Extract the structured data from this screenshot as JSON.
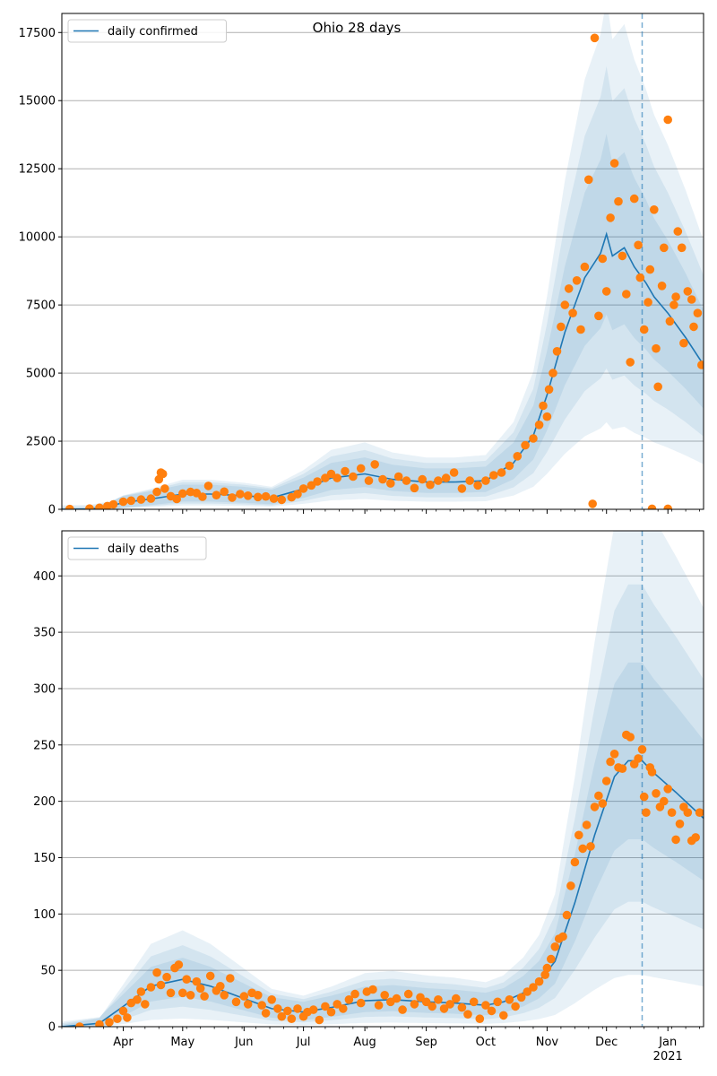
{
  "title": "Ohio 28 days",
  "colors": {
    "line": "#1f77b4",
    "points": "#ff7f0e",
    "band": "#1f77b4",
    "grid": "#b0b0b0"
  },
  "x_axis": {
    "start": "2020-03-01",
    "end": "2021-01-19",
    "month_ticks": [
      {
        "date": "2020-04-01",
        "label": "Apr"
      },
      {
        "date": "2020-05-01",
        "label": "May"
      },
      {
        "date": "2020-06-01",
        "label": "Jun"
      },
      {
        "date": "2020-07-01",
        "label": "Jul"
      },
      {
        "date": "2020-08-01",
        "label": "Aug"
      },
      {
        "date": "2020-09-01",
        "label": "Sep"
      },
      {
        "date": "2020-10-01",
        "label": "Oct"
      },
      {
        "date": "2020-11-01",
        "label": "Nov"
      },
      {
        "date": "2020-12-01",
        "label": "Dec"
      },
      {
        "date": "2021-01-01",
        "label": "Jan",
        "sublabel": "2021"
      }
    ],
    "vline_date": "2020-12-19"
  },
  "chart_data": [
    {
      "type": "line",
      "legend": "daily confirmed",
      "legend_position": "upper left",
      "ylim": [
        0,
        18200
      ],
      "yticks": [
        0,
        2500,
        5000,
        7500,
        10000,
        12500,
        15000,
        17500
      ],
      "grid": true,
      "line_points": [
        [
          "2020-03-01",
          0
        ],
        [
          "2020-03-15",
          10
        ],
        [
          "2020-03-25",
          100
        ],
        [
          "2020-04-01",
          250
        ],
        [
          "2020-04-15",
          380
        ],
        [
          "2020-05-01",
          560
        ],
        [
          "2020-05-15",
          560
        ],
        [
          "2020-06-01",
          500
        ],
        [
          "2020-06-15",
          420
        ],
        [
          "2020-07-01",
          750
        ],
        [
          "2020-07-15",
          1150
        ],
        [
          "2020-08-01",
          1300
        ],
        [
          "2020-08-15",
          1100
        ],
        [
          "2020-09-01",
          1000
        ],
        [
          "2020-09-15",
          1000
        ],
        [
          "2020-10-01",
          1050
        ],
        [
          "2020-10-15",
          1700
        ],
        [
          "2020-10-25",
          2700
        ],
        [
          "2020-11-01",
          4200
        ],
        [
          "2020-11-10",
          6500
        ],
        [
          "2020-11-20",
          8500
        ],
        [
          "2020-11-28",
          9400
        ],
        [
          "2020-12-01",
          10100
        ],
        [
          "2020-12-04",
          9300
        ],
        [
          "2020-12-10",
          9600
        ],
        [
          "2020-12-15",
          8900
        ],
        [
          "2020-12-21",
          8300
        ],
        [
          "2020-12-25",
          7800
        ],
        [
          "2021-01-01",
          7200
        ],
        [
          "2021-01-10",
          6300
        ],
        [
          "2021-01-19",
          5300
        ]
      ],
      "band_scales": [
        0.85,
        0.6,
        0.35
      ],
      "band_floor": 100,
      "points": [
        [
          "2020-03-05",
          10
        ],
        [
          "2020-03-15",
          25
        ],
        [
          "2020-03-20",
          55
        ],
        [
          "2020-03-24",
          120
        ],
        [
          "2020-03-27",
          180
        ],
        [
          "2020-04-01",
          280
        ],
        [
          "2020-04-05",
          320
        ],
        [
          "2020-04-10",
          360
        ],
        [
          "2020-04-15",
          390
        ],
        [
          "2020-04-18",
          640
        ],
        [
          "2020-04-19",
          1100
        ],
        [
          "2020-04-20",
          1350
        ],
        [
          "2020-04-21",
          1300
        ],
        [
          "2020-04-22",
          760
        ],
        [
          "2020-04-25",
          480
        ],
        [
          "2020-04-28",
          380
        ],
        [
          "2020-05-01",
          580
        ],
        [
          "2020-05-05",
          640
        ],
        [
          "2020-05-08",
          600
        ],
        [
          "2020-05-11",
          460
        ],
        [
          "2020-05-14",
          860
        ],
        [
          "2020-05-18",
          520
        ],
        [
          "2020-05-22",
          650
        ],
        [
          "2020-05-26",
          430
        ],
        [
          "2020-05-30",
          560
        ],
        [
          "2020-06-03",
          500
        ],
        [
          "2020-06-08",
          450
        ],
        [
          "2020-06-12",
          470
        ],
        [
          "2020-06-16",
          390
        ],
        [
          "2020-06-20",
          350
        ],
        [
          "2020-06-25",
          440
        ],
        [
          "2020-06-28",
          560
        ],
        [
          "2020-07-01",
          760
        ],
        [
          "2020-07-05",
          880
        ],
        [
          "2020-07-08",
          1020
        ],
        [
          "2020-07-12",
          1150
        ],
        [
          "2020-07-15",
          1300
        ],
        [
          "2020-07-18",
          1150
        ],
        [
          "2020-07-22",
          1400
        ],
        [
          "2020-07-26",
          1200
        ],
        [
          "2020-07-30",
          1500
        ],
        [
          "2020-08-03",
          1050
        ],
        [
          "2020-08-06",
          1650
        ],
        [
          "2020-08-10",
          1100
        ],
        [
          "2020-08-14",
          950
        ],
        [
          "2020-08-18",
          1200
        ],
        [
          "2020-08-22",
          1050
        ],
        [
          "2020-08-26",
          780
        ],
        [
          "2020-08-30",
          1100
        ],
        [
          "2020-09-03",
          900
        ],
        [
          "2020-09-07",
          1050
        ],
        [
          "2020-09-11",
          1150
        ],
        [
          "2020-09-15",
          1350
        ],
        [
          "2020-09-19",
          760
        ],
        [
          "2020-09-23",
          1050
        ],
        [
          "2020-09-27",
          880
        ],
        [
          "2020-10-01",
          1050
        ],
        [
          "2020-10-05",
          1250
        ],
        [
          "2020-10-09",
          1350
        ],
        [
          "2020-10-13",
          1600
        ],
        [
          "2020-10-17",
          1950
        ],
        [
          "2020-10-21",
          2350
        ],
        [
          "2020-10-25",
          2600
        ],
        [
          "2020-10-28",
          3100
        ],
        [
          "2020-10-30",
          3800
        ],
        [
          "2020-11-01",
          3400
        ],
        [
          "2020-11-02",
          4400
        ],
        [
          "2020-11-04",
          5000
        ],
        [
          "2020-11-06",
          5800
        ],
        [
          "2020-11-08",
          6700
        ],
        [
          "2020-11-10",
          7500
        ],
        [
          "2020-11-12",
          8100
        ],
        [
          "2020-11-14",
          7200
        ],
        [
          "2020-11-16",
          8400
        ],
        [
          "2020-11-18",
          6600
        ],
        [
          "2020-11-20",
          8900
        ],
        [
          "2020-11-22",
          12100
        ],
        [
          "2020-11-24",
          200
        ],
        [
          "2020-11-25",
          17300
        ],
        [
          "2020-11-27",
          7100
        ],
        [
          "2020-11-29",
          9200
        ],
        [
          "2020-12-01",
          8000
        ],
        [
          "2020-12-03",
          10700
        ],
        [
          "2020-12-05",
          12700
        ],
        [
          "2020-12-07",
          11300
        ],
        [
          "2020-12-09",
          9300
        ],
        [
          "2020-12-11",
          7900
        ],
        [
          "2020-12-13",
          5400
        ],
        [
          "2020-12-15",
          11400
        ],
        [
          "2020-12-17",
          9700
        ],
        [
          "2020-12-18",
          8500
        ],
        [
          "2020-12-20",
          6600
        ],
        [
          "2020-12-22",
          7600
        ],
        [
          "2020-12-23",
          8800
        ],
        [
          "2020-12-24",
          20
        ],
        [
          "2020-12-25",
          11000
        ],
        [
          "2020-12-26",
          5900
        ],
        [
          "2020-12-27",
          4500
        ],
        [
          "2020-12-29",
          8200
        ],
        [
          "2020-12-30",
          9600
        ],
        [
          "2021-01-01",
          14300
        ],
        [
          "2021-01-01",
          20
        ],
        [
          "2021-01-02",
          6900
        ],
        [
          "2021-01-04",
          7500
        ],
        [
          "2021-01-05",
          7800
        ],
        [
          "2021-01-06",
          10200
        ],
        [
          "2021-01-08",
          9600
        ],
        [
          "2021-01-09",
          6100
        ],
        [
          "2021-01-11",
          8000
        ],
        [
          "2021-01-13",
          7700
        ],
        [
          "2021-01-14",
          6700
        ],
        [
          "2021-01-16",
          7200
        ],
        [
          "2021-01-18",
          5300
        ]
      ]
    },
    {
      "type": "line",
      "legend": "daily deaths",
      "legend_position": "upper left",
      "ylim": [
        0,
        440
      ],
      "yticks": [
        0,
        50,
        100,
        150,
        200,
        250,
        300,
        350,
        400
      ],
      "grid": true,
      "line_points": [
        [
          "2020-03-01",
          0
        ],
        [
          "2020-03-20",
          3
        ],
        [
          "2020-04-01",
          18
        ],
        [
          "2020-04-15",
          36
        ],
        [
          "2020-05-01",
          42
        ],
        [
          "2020-05-15",
          36
        ],
        [
          "2020-06-01",
          25
        ],
        [
          "2020-06-15",
          16
        ],
        [
          "2020-07-01",
          13
        ],
        [
          "2020-07-15",
          17
        ],
        [
          "2020-08-01",
          23
        ],
        [
          "2020-08-15",
          24
        ],
        [
          "2020-09-01",
          22
        ],
        [
          "2020-09-15",
          21
        ],
        [
          "2020-10-01",
          19
        ],
        [
          "2020-10-10",
          22
        ],
        [
          "2020-10-20",
          30
        ],
        [
          "2020-10-28",
          40
        ],
        [
          "2020-11-05",
          58
        ],
        [
          "2020-11-15",
          110
        ],
        [
          "2020-11-25",
          170
        ],
        [
          "2020-12-05",
          222
        ],
        [
          "2020-12-12",
          236
        ],
        [
          "2020-12-19",
          236
        ],
        [
          "2020-12-25",
          225
        ],
        [
          "2021-01-05",
          208
        ],
        [
          "2021-01-19",
          185
        ]
      ],
      "band_scales": [
        1.0,
        0.65,
        0.35
      ],
      "band_floor": 3,
      "points": [
        [
          "2020-03-10",
          0
        ],
        [
          "2020-03-20",
          2
        ],
        [
          "2020-03-25",
          4
        ],
        [
          "2020-03-29",
          7
        ],
        [
          "2020-04-01",
          14
        ],
        [
          "2020-04-03",
          8
        ],
        [
          "2020-04-05",
          21
        ],
        [
          "2020-04-08",
          24
        ],
        [
          "2020-04-10",
          31
        ],
        [
          "2020-04-12",
          20
        ],
        [
          "2020-04-15",
          35
        ],
        [
          "2020-04-18",
          48
        ],
        [
          "2020-04-20",
          37
        ],
        [
          "2020-04-23",
          44
        ],
        [
          "2020-04-25",
          30
        ],
        [
          "2020-04-27",
          52
        ],
        [
          "2020-04-29",
          55
        ],
        [
          "2020-05-01",
          30
        ],
        [
          "2020-05-03",
          42
        ],
        [
          "2020-05-05",
          28
        ],
        [
          "2020-05-08",
          40
        ],
        [
          "2020-05-10",
          34
        ],
        [
          "2020-05-12",
          27
        ],
        [
          "2020-05-15",
          45
        ],
        [
          "2020-05-18",
          32
        ],
        [
          "2020-05-20",
          36
        ],
        [
          "2020-05-22",
          28
        ],
        [
          "2020-05-25",
          43
        ],
        [
          "2020-05-28",
          22
        ],
        [
          "2020-06-01",
          27
        ],
        [
          "2020-06-03",
          20
        ],
        [
          "2020-06-05",
          30
        ],
        [
          "2020-06-08",
          28
        ],
        [
          "2020-06-10",
          19
        ],
        [
          "2020-06-12",
          12
        ],
        [
          "2020-06-15",
          24
        ],
        [
          "2020-06-18",
          16
        ],
        [
          "2020-06-20",
          9
        ],
        [
          "2020-06-23",
          14
        ],
        [
          "2020-06-25",
          7
        ],
        [
          "2020-06-28",
          16
        ],
        [
          "2020-07-01",
          9
        ],
        [
          "2020-07-03",
          13
        ],
        [
          "2020-07-06",
          15
        ],
        [
          "2020-07-09",
          6
        ],
        [
          "2020-07-12",
          18
        ],
        [
          "2020-07-15",
          13
        ],
        [
          "2020-07-18",
          20
        ],
        [
          "2020-07-21",
          16
        ],
        [
          "2020-07-24",
          24
        ],
        [
          "2020-07-27",
          29
        ],
        [
          "2020-07-30",
          21
        ],
        [
          "2020-08-02",
          31
        ],
        [
          "2020-08-05",
          33
        ],
        [
          "2020-08-08",
          19
        ],
        [
          "2020-08-11",
          28
        ],
        [
          "2020-08-14",
          22
        ],
        [
          "2020-08-17",
          25
        ],
        [
          "2020-08-20",
          15
        ],
        [
          "2020-08-23",
          29
        ],
        [
          "2020-08-26",
          20
        ],
        [
          "2020-08-29",
          26
        ],
        [
          "2020-09-01",
          22
        ],
        [
          "2020-09-04",
          18
        ],
        [
          "2020-09-07",
          24
        ],
        [
          "2020-09-10",
          16
        ],
        [
          "2020-09-13",
          20
        ],
        [
          "2020-09-16",
          25
        ],
        [
          "2020-09-19",
          17
        ],
        [
          "2020-09-22",
          11
        ],
        [
          "2020-09-25",
          22
        ],
        [
          "2020-09-28",
          7
        ],
        [
          "2020-10-01",
          19
        ],
        [
          "2020-10-04",
          14
        ],
        [
          "2020-10-07",
          22
        ],
        [
          "2020-10-10",
          10
        ],
        [
          "2020-10-13",
          24
        ],
        [
          "2020-10-16",
          18
        ],
        [
          "2020-10-19",
          26
        ],
        [
          "2020-10-22",
          31
        ],
        [
          "2020-10-25",
          35
        ],
        [
          "2020-10-28",
          40
        ],
        [
          "2020-10-31",
          46
        ],
        [
          "2020-11-01",
          52
        ],
        [
          "2020-11-03",
          60
        ],
        [
          "2020-11-05",
          71
        ],
        [
          "2020-11-07",
          78
        ],
        [
          "2020-11-09",
          80
        ],
        [
          "2020-11-11",
          99
        ],
        [
          "2020-11-13",
          125
        ],
        [
          "2020-11-15",
          146
        ],
        [
          "2020-11-17",
          170
        ],
        [
          "2020-11-19",
          158
        ],
        [
          "2020-11-21",
          179
        ],
        [
          "2020-11-23",
          160
        ],
        [
          "2020-11-25",
          195
        ],
        [
          "2020-11-27",
          205
        ],
        [
          "2020-11-29",
          198
        ],
        [
          "2020-12-01",
          218
        ],
        [
          "2020-12-03",
          235
        ],
        [
          "2020-12-05",
          242
        ],
        [
          "2020-12-07",
          230
        ],
        [
          "2020-12-09",
          229
        ],
        [
          "2020-12-11",
          259
        ],
        [
          "2020-12-13",
          257
        ],
        [
          "2020-12-15",
          233
        ],
        [
          "2020-12-17",
          238
        ],
        [
          "2020-12-19",
          246
        ],
        [
          "2020-12-20",
          204
        ],
        [
          "2020-12-21",
          190
        ],
        [
          "2020-12-23",
          230
        ],
        [
          "2020-12-24",
          226
        ],
        [
          "2020-12-26",
          207
        ],
        [
          "2020-12-28",
          195
        ],
        [
          "2020-12-30",
          200
        ],
        [
          "2021-01-01",
          211
        ],
        [
          "2021-01-03",
          190
        ],
        [
          "2021-01-05",
          166
        ],
        [
          "2021-01-07",
          180
        ],
        [
          "2021-01-09",
          195
        ],
        [
          "2021-01-11",
          190
        ],
        [
          "2021-01-13",
          165
        ],
        [
          "2021-01-15",
          168
        ],
        [
          "2021-01-17",
          190
        ]
      ]
    }
  ]
}
